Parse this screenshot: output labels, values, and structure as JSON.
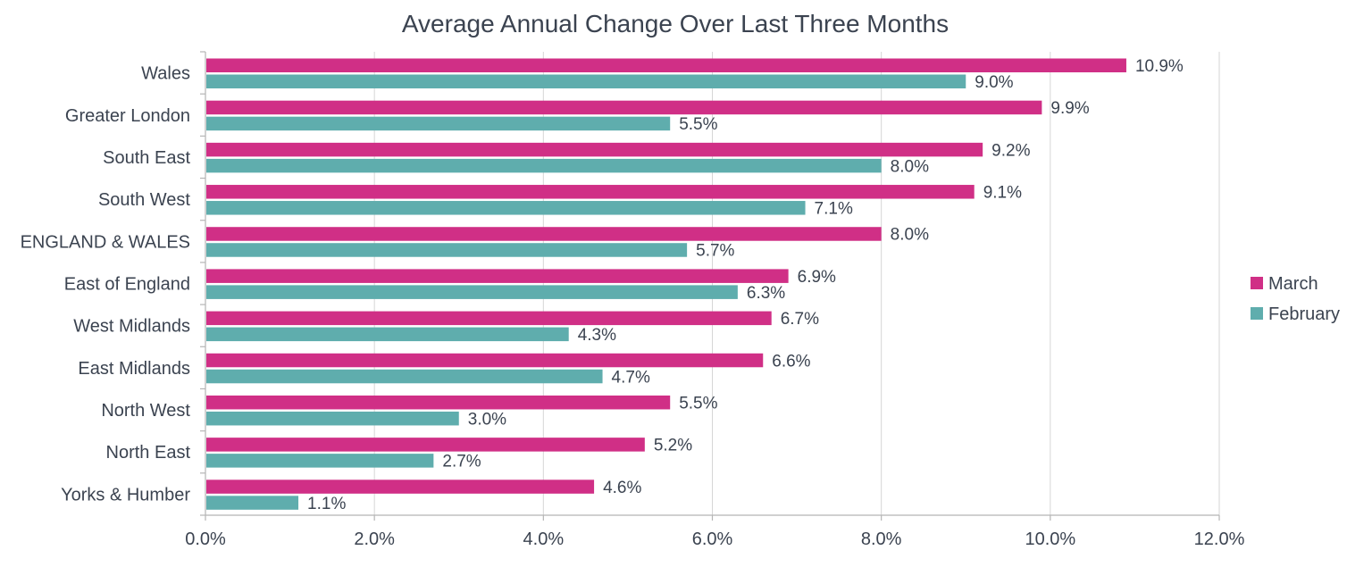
{
  "chart_data": {
    "type": "bar",
    "orientation": "horizontal",
    "title": "Average Annual Change Over Last Three Months",
    "xlabel": "",
    "ylabel": "",
    "xlim": [
      0,
      12
    ],
    "x_ticks": [
      0,
      2,
      4,
      6,
      8,
      10,
      12
    ],
    "x_tick_labels": [
      "0.0%",
      "2.0%",
      "4.0%",
      "6.0%",
      "8.0%",
      "10.0%",
      "12.0%"
    ],
    "grid": true,
    "legend_position": "right",
    "categories": [
      "Wales",
      "Greater London",
      "South East",
      "South West",
      "ENGLAND & WALES",
      "East of England",
      "West Midlands",
      "East Midlands",
      "North West",
      "North East",
      "Yorks & Humber"
    ],
    "series": [
      {
        "name": "March",
        "color": "#d02f86",
        "values": [
          10.9,
          9.9,
          9.2,
          9.1,
          8.0,
          6.9,
          6.7,
          6.6,
          5.5,
          5.2,
          4.6
        ],
        "labels": [
          "10.9%",
          "9.9%",
          "9.2%",
          "9.1%",
          "8.0%",
          "6.9%",
          "6.7%",
          "6.6%",
          "5.5%",
          "5.2%",
          "4.6%"
        ]
      },
      {
        "name": "February",
        "color": "#5fadad",
        "values": [
          9.0,
          5.5,
          8.0,
          7.1,
          5.7,
          6.3,
          4.3,
          4.7,
          3.0,
          2.7,
          1.1
        ],
        "labels": [
          "9.0%",
          "5.5%",
          "8.0%",
          "7.1%",
          "5.7%",
          "6.3%",
          "4.3%",
          "4.7%",
          "3.0%",
          "2.7%",
          "1.1%"
        ]
      }
    ]
  }
}
